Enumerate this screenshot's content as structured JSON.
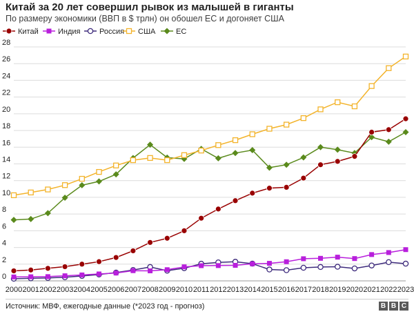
{
  "header": {
    "title": "Китай за 20 лет совершил рывок из малышей в гиганты",
    "subtitle": "По размеру экономики (ВВП в $ трлн) он обошел ЕС и догоняет США"
  },
  "footer": {
    "source": "Источник: МВФ, ежегодные данные (*2023 год - прогноз)",
    "logo_letters": [
      "B",
      "B",
      "C"
    ]
  },
  "chart_data": {
    "type": "line",
    "title": "Китай за 20 лет совершил рывок из малышей в гиганты",
    "subtitle": "По размеру экономики (ВВП в $ трлн) он обошел ЕС и догоняет США",
    "xlabel": "",
    "ylabel": "",
    "ylim": [
      0,
      28
    ],
    "yticks": [
      0,
      2,
      4,
      6,
      8,
      10,
      12,
      14,
      16,
      18,
      20,
      22,
      24,
      26,
      28
    ],
    "grid": "horizontal",
    "legend_position": "top-left",
    "x": [
      "2000",
      "2001",
      "2002",
      "2003",
      "2004",
      "2005",
      "2006",
      "2007",
      "2008",
      "2009",
      "2010",
      "2011",
      "2012",
      "2013",
      "2014",
      "2015",
      "2016",
      "2017",
      "2018",
      "2019",
      "2020",
      "2021",
      "2022",
      "2023"
    ],
    "series": [
      {
        "name": "Китай",
        "marker": "circle",
        "color": "#990000",
        "values": [
          1.2,
          1.3,
          1.5,
          1.7,
          2.0,
          2.3,
          2.8,
          3.6,
          4.6,
          5.1,
          6.0,
          7.5,
          8.6,
          9.6,
          10.5,
          11.1,
          11.2,
          12.3,
          13.9,
          14.3,
          14.9,
          17.8,
          18.1,
          19.4
        ]
      },
      {
        "name": "Индия",
        "marker": "square",
        "color": "#b81fdc",
        "values": [
          0.47,
          0.49,
          0.51,
          0.61,
          0.71,
          0.83,
          0.94,
          1.22,
          1.2,
          1.34,
          1.68,
          1.82,
          1.83,
          1.86,
          2.04,
          2.1,
          2.29,
          2.65,
          2.7,
          2.84,
          2.67,
          3.15,
          3.39,
          3.74
        ]
      },
      {
        "name": "Россия",
        "marker": "circle-open",
        "color": "#3d2a7c",
        "values": [
          0.26,
          0.31,
          0.35,
          0.43,
          0.59,
          0.76,
          0.99,
          1.3,
          1.66,
          1.22,
          1.52,
          2.05,
          2.21,
          2.29,
          2.06,
          1.36,
          1.28,
          1.57,
          1.66,
          1.69,
          1.49,
          1.84,
          2.24,
          2.06
        ]
      },
      {
        "name": "США",
        "marker": "square-open",
        "color": "#f3b32a",
        "values": [
          10.25,
          10.58,
          10.94,
          11.46,
          12.22,
          13.04,
          13.81,
          14.45,
          14.71,
          14.45,
          15.05,
          15.6,
          16.25,
          16.84,
          17.55,
          18.21,
          18.7,
          19.48,
          20.53,
          21.38,
          20.89,
          23.32,
          25.46,
          26.85
        ]
      },
      {
        "name": "ЕС",
        "marker": "diamond",
        "color": "#5a8a1c",
        "values": [
          7.3,
          7.4,
          8.1,
          9.95,
          11.45,
          11.9,
          12.75,
          14.7,
          16.3,
          14.75,
          14.6,
          15.8,
          14.67,
          15.3,
          15.65,
          13.55,
          13.9,
          14.77,
          16.0,
          15.7,
          15.3,
          17.2,
          16.65,
          17.8
        ]
      }
    ]
  }
}
